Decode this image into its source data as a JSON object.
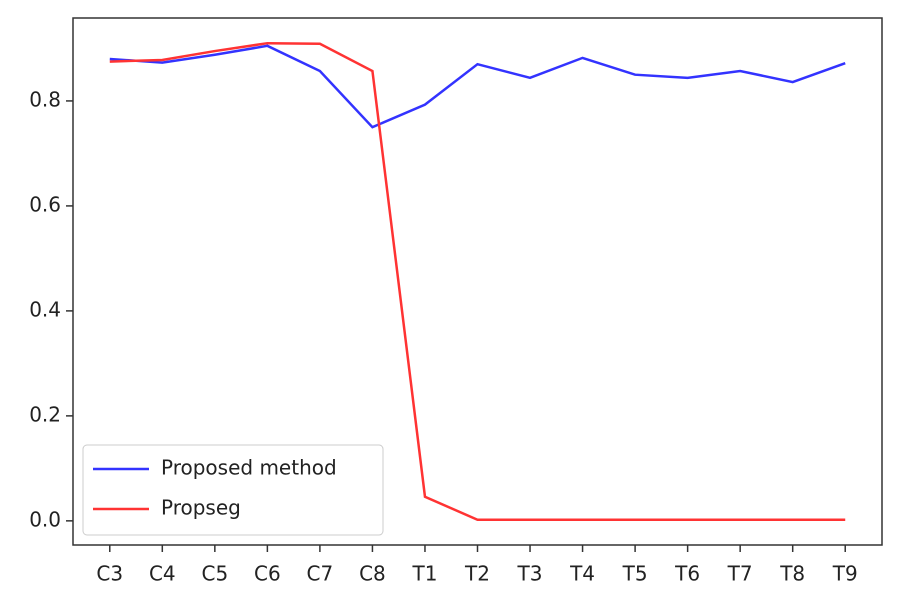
{
  "chart_data": {
    "type": "line",
    "categories": [
      "C3",
      "C4",
      "C5",
      "C6",
      "C7",
      "C8",
      "T1",
      "T2",
      "T3",
      "T4",
      "T5",
      "T6",
      "T7",
      "T8",
      "T9"
    ],
    "series": [
      {
        "name": "Proposed method",
        "color": "#3333ff",
        "values": [
          0.88,
          0.873,
          0.888,
          0.905,
          0.857,
          0.75,
          0.793,
          0.87,
          0.844,
          0.882,
          0.85,
          0.844,
          0.857,
          0.836,
          0.872
        ]
      },
      {
        "name": "Propseg",
        "color": "#ff3333",
        "values": [
          0.875,
          0.878,
          0.895,
          0.91,
          0.909,
          0.857,
          0.046,
          0.002,
          0.002,
          0.002,
          0.002,
          0.002,
          0.002,
          0.002,
          0.002
        ]
      }
    ],
    "ylim": [
      -0.046,
      0.958
    ],
    "yticks": [
      {
        "value": 0,
        "label": "0.0"
      },
      0.2,
      0.4,
      0.6,
      0.8
    ],
    "legend": "lower left"
  }
}
